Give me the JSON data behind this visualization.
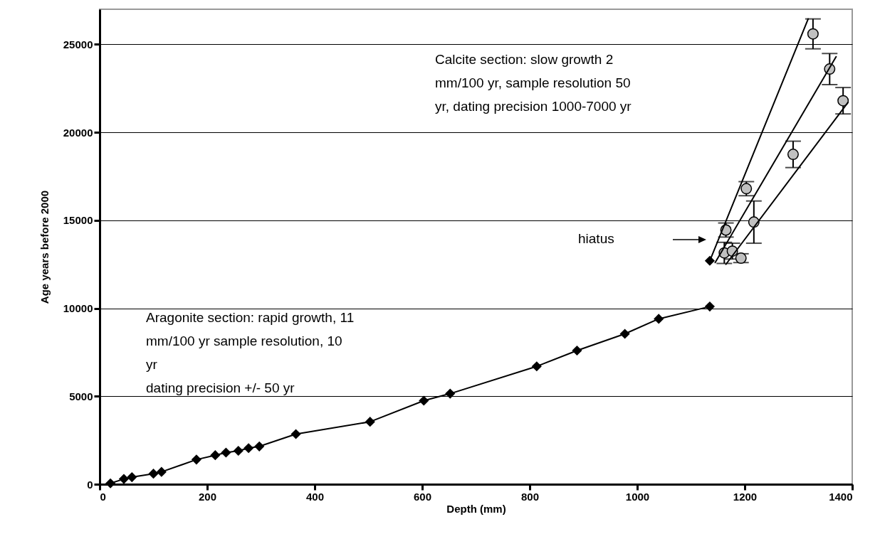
{
  "chart_data": {
    "type": "scatter",
    "xlabel": "Depth (mm)",
    "ylabel": "Age years before 2000",
    "xlim": [
      0,
      1400
    ],
    "ylim": [
      0,
      27000
    ],
    "xticks": [
      0,
      200,
      400,
      600,
      800,
      1000,
      1200,
      1400
    ],
    "yticks": [
      0,
      5000,
      10000,
      15000,
      20000,
      25000
    ],
    "grid": "y",
    "line_style": "solid",
    "series": [
      {
        "type": "line",
        "marker": "diamond",
        "color": "#000000",
        "x": [
          20,
          45,
          60,
          100,
          115,
          180,
          215,
          235,
          258,
          277,
          297,
          365,
          503,
          603,
          652,
          813,
          888,
          977,
          1040,
          1135
        ],
        "values": [
          50,
          300,
          400,
          600,
          700,
          1400,
          1650,
          1800,
          1900,
          2050,
          2150,
          2850,
          3550,
          4750,
          5150,
          6700,
          7600,
          8550,
          9400,
          10100
        ]
      },
      {
        "marker": "diamond",
        "color": "#000000",
        "x": [
          1135
        ],
        "values": [
          12700
        ]
      },
      {
        "marker": "circle",
        "color": "#c0c0c0",
        "x": [
          1162,
          1165,
          1177,
          1193,
          1203,
          1217,
          1290,
          1327,
          1358,
          1383
        ],
        "values": [
          13150,
          14450,
          13250,
          12850,
          16800,
          14900,
          18750,
          25600,
          23600,
          21800
        ],
        "errors": [
          600,
          400,
          450,
          250,
          400,
          1200,
          750,
          850,
          880,
          750
        ]
      },
      {
        "type": "line",
        "marker": "none",
        "color": "#000000",
        "x": [
          1135,
          1318
        ],
        "values": [
          12700,
          26450
        ]
      },
      {
        "type": "line",
        "marker": "none",
        "color": "#000000",
        "x": [
          1145,
          1370
        ],
        "values": [
          12600,
          24300
        ]
      },
      {
        "type": "line",
        "marker": "none",
        "color": "#000000",
        "x": [
          1165,
          1392
        ],
        "values": [
          12500,
          21700
        ]
      }
    ],
    "annotations": [
      "Calcite section: slow growth 2\nmm/100 yr,  sample resolution 50\nyr,  dating precision 1000-7000 yr",
      "hiatus",
      "Aragonite section: rapid growth, 11\nmm/100 yr sample resolution,  10\nyr\ndating precision +/- 50 yr"
    ]
  }
}
